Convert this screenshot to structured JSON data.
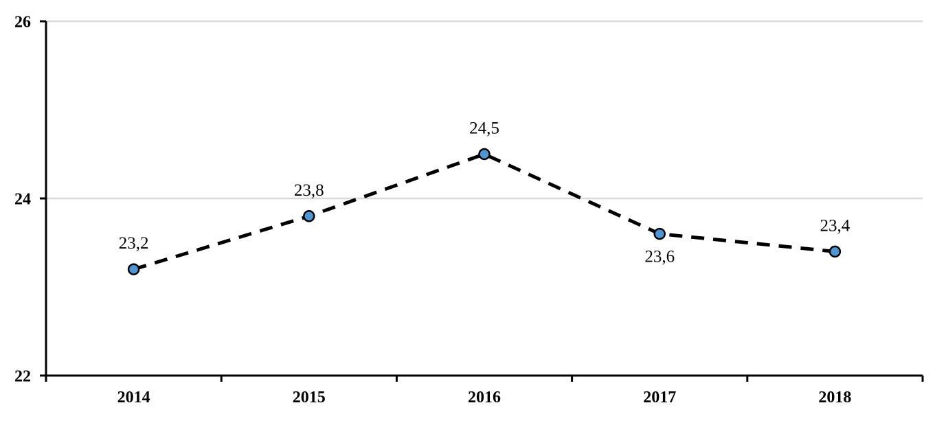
{
  "chart_data": {
    "type": "line",
    "categories": [
      "2014",
      "2015",
      "2016",
      "2017",
      "2018"
    ],
    "series": [
      {
        "name": "value",
        "values": [
          23.2,
          23.8,
          24.5,
          23.6,
          23.4
        ],
        "value_labels": [
          "23,2",
          "23,8",
          "24,5",
          "23,6",
          "23,4"
        ],
        "label_positions": [
          "above",
          "above",
          "above",
          "below",
          "above"
        ]
      }
    ],
    "title": "",
    "xlabel": "",
    "ylabel": "",
    "ylim": [
      22,
      26
    ],
    "y_ticks": [
      22,
      24,
      26
    ],
    "y_tick_labels": [
      "22",
      "24",
      "26"
    ],
    "grid": "horizontal",
    "legend": "none",
    "line_style": "dashed",
    "marker": "circle",
    "colors": {
      "line": "#000000",
      "marker_fill": "#4e95d2",
      "marker_border": "#000000",
      "gridline": "#d9d9d9",
      "axis": "#000000",
      "text": "#000000",
      "background": "#ffffff"
    }
  }
}
